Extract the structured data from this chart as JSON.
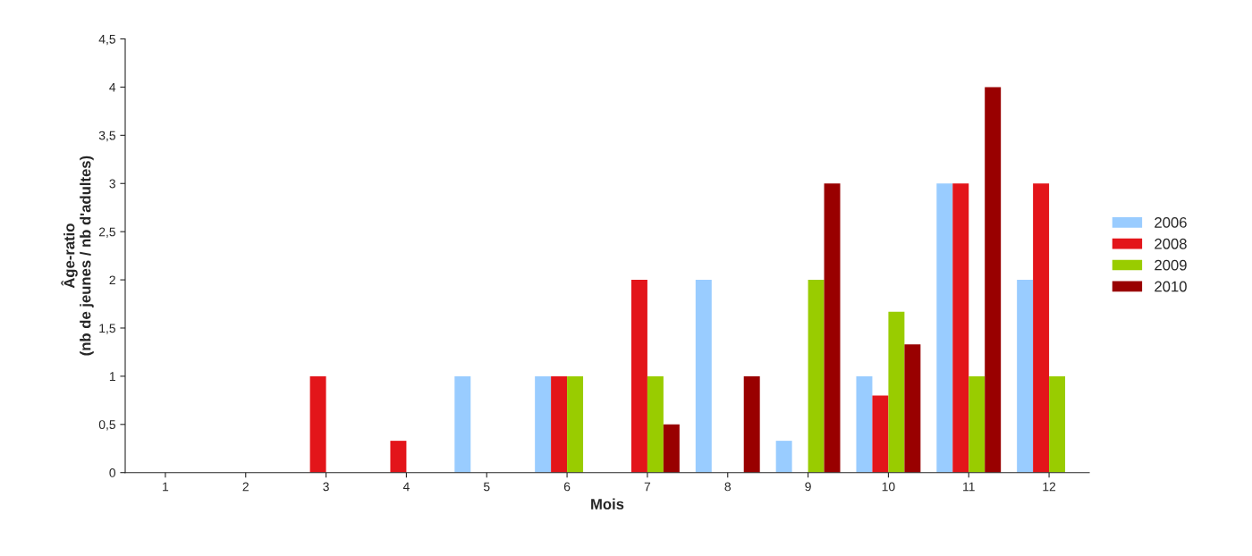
{
  "chart_data": {
    "type": "bar",
    "xlabel": "Mois",
    "ylabel": "Âge-ratio\n(nb de jeunes / nb d'adultes)",
    "categories": [
      "1",
      "2",
      "3",
      "4",
      "5",
      "6",
      "7",
      "8",
      "9",
      "10",
      "11",
      "12"
    ],
    "series": [
      {
        "name": "2006",
        "color": "#99ccff",
        "values": [
          null,
          null,
          null,
          null,
          1,
          1,
          null,
          2,
          0.33,
          1,
          3,
          2
        ]
      },
      {
        "name": "2008",
        "color": "#e3151a",
        "values": [
          null,
          null,
          1,
          0.33,
          null,
          1,
          2,
          null,
          null,
          0.8,
          3,
          3
        ]
      },
      {
        "name": "2009",
        "color": "#99cc00",
        "values": [
          null,
          null,
          null,
          null,
          null,
          1,
          1,
          null,
          2,
          1.67,
          1,
          1
        ]
      },
      {
        "name": "2010",
        "color": "#990000",
        "values": [
          null,
          null,
          null,
          null,
          null,
          null,
          0.5,
          1,
          3,
          1.33,
          4,
          null
        ]
      }
    ],
    "ylim": [
      0,
      4.5
    ],
    "yticks": [
      0,
      {
        "value": 0.5,
        "label": "0,5"
      },
      1,
      {
        "value": 1.5,
        "label": "1,5"
      },
      2,
      {
        "value": 2.5,
        "label": "2,5"
      },
      3,
      {
        "value": 3.5,
        "label": "3,5"
      },
      4,
      {
        "value": 4.5,
        "label": "4,5"
      }
    ],
    "grid": false,
    "legend": "right"
  }
}
